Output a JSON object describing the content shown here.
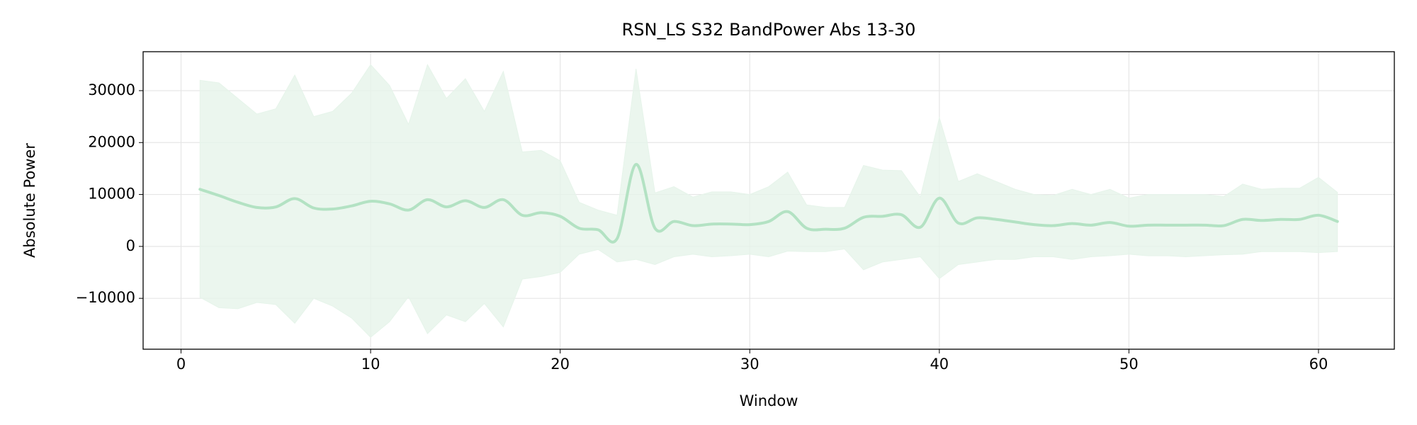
{
  "chart_data": {
    "type": "line",
    "title": "RSN_LS S32 BandPower Abs 13-30",
    "xlabel": "Window",
    "ylabel": "Absolute Power",
    "x": [
      1,
      2,
      3,
      4,
      5,
      6,
      7,
      8,
      9,
      10,
      11,
      12,
      13,
      14,
      15,
      16,
      17,
      18,
      19,
      20,
      21,
      22,
      23,
      24,
      25,
      26,
      27,
      28,
      29,
      30,
      31,
      32,
      33,
      34,
      35,
      36,
      37,
      38,
      39,
      40,
      41,
      42,
      43,
      44,
      45,
      46,
      47,
      48,
      49,
      50,
      51,
      52,
      53,
      54,
      55,
      56,
      57,
      58,
      59,
      60,
      61
    ],
    "values": [
      11000,
      9800,
      8500,
      7500,
      7600,
      9200,
      7400,
      7200,
      7800,
      8700,
      8200,
      7000,
      9000,
      7600,
      8800,
      7500,
      9000,
      6000,
      6500,
      5800,
      3500,
      3200,
      1500,
      15800,
      3500,
      4800,
      4000,
      4300,
      4300,
      4200,
      4800,
      6700,
      3500,
      3300,
      3500,
      5600,
      5800,
      6100,
      3700,
      9300,
      4500,
      5500,
      5200,
      4700,
      4200,
      4000,
      4400,
      4100,
      4600,
      3900,
      4100,
      4100,
      4100,
      4100,
      4000,
      5200,
      5000,
      5200,
      5200,
      6000,
      4800
    ],
    "upper": [
      32000,
      31500,
      28500,
      25500,
      26500,
      33000,
      25000,
      26000,
      29500,
      35000,
      31000,
      23500,
      35000,
      28500,
      32300,
      26000,
      33700,
      18200,
      18500,
      16500,
      8500,
      7000,
      6000,
      34200,
      10300,
      11500,
      9500,
      10500,
      10500,
      10000,
      11500,
      14300,
      8000,
      7500,
      7500,
      15600,
      14700,
      14600,
      9500,
      24800,
      12500,
      14000,
      12500,
      11000,
      10000,
      9800,
      11000,
      10000,
      11000,
      9300,
      10000,
      10000,
      10000,
      10000,
      9600,
      12000,
      11000,
      11200,
      11200,
      13300,
      10400
    ],
    "lower": [
      -9800,
      -11800,
      -12000,
      -10800,
      -11200,
      -14800,
      -10000,
      -11500,
      -13800,
      -17500,
      -14500,
      -9700,
      -16800,
      -13200,
      -14500,
      -11000,
      -15500,
      -6300,
      -5800,
      -5000,
      -1500,
      -600,
      -3000,
      -2500,
      -3500,
      -2000,
      -1500,
      -2000,
      -1800,
      -1500,
      -2000,
      -900,
      -1000,
      -1000,
      -500,
      -4500,
      -3000,
      -2500,
      -2000,
      -6200,
      -3500,
      -3000,
      -2500,
      -2500,
      -2000,
      -2000,
      -2500,
      -2000,
      -1800,
      -1500,
      -1800,
      -1800,
      -2000,
      -1800,
      -1600,
      -1500,
      -1000,
      -1000,
      -1000,
      -1200,
      -1000
    ],
    "color": "#b3e2c3",
    "band_color": "#e6f4ea",
    "xlim": [
      -2,
      64
    ],
    "ylim": [
      -19800,
      37500
    ],
    "xticks": [
      0,
      10,
      20,
      30,
      40,
      50,
      60
    ],
    "yticks": [
      {
        "value": -10000,
        "label": "−10000"
      },
      0,
      10000,
      20000,
      30000
    ],
    "grid": true
  }
}
